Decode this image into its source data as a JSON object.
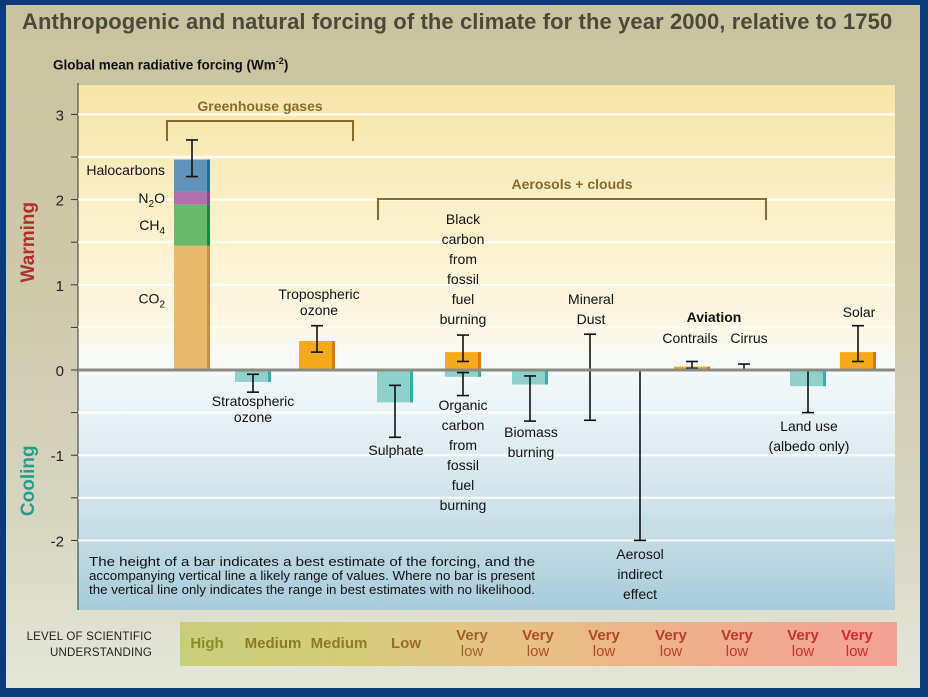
{
  "title": "Anthropogenic and natural forcing of the climate for the year 2000, relative to 1750",
  "level_label_line1": "LEVEL OF SCIENTIFIC",
  "level_label_line2": "UNDERSTANDING",
  "colors": {
    "frame": "#0d3a7a",
    "warming_label": "#b0302a",
    "cooling_label": "#2a9a8e",
    "bracket": "#8a6a2a",
    "co2": "#e8b96a",
    "ch4": "#6ab86a",
    "n2o": "#b070b0",
    "halocarbons": "#5f93ba",
    "positive_bar": "#f5aa1a",
    "negative_bar": "#8fd0cc"
  },
  "chart_data": {
    "type": "bar",
    "title": "Anthropogenic and natural forcing of the climate for the year 2000, relative to 1750",
    "ylabel": "Global mean radiative forcing (Wm-2)",
    "ylabel_sup": "-2",
    "ylim": [
      -2.85,
      3.35
    ],
    "yticks": [
      -2,
      -1,
      0,
      1,
      2,
      3
    ],
    "minor_gridlines": [
      -1.5,
      -0.5,
      0.5,
      1.5,
      2.5
    ],
    "side_labels": {
      "warming": "Warming",
      "cooling": "Cooling"
    },
    "groups": [
      {
        "label": "Greenhouse gases",
        "from": 0,
        "to": 2
      },
      {
        "label": "Aerosols + clouds",
        "from": 3,
        "to": 8
      }
    ],
    "aviation_heading": "Aviation",
    "note": [
      "The height of a bar indicates a best estimate of the forcing, and the",
      "accompanying vertical line a likely range of values.  Where no bar is present",
      "the vertical line only indicates the range in best estimates with no likelihood."
    ],
    "stacked_ghg": {
      "segments": [
        {
          "name": "CO2",
          "label": "CO",
          "sub": "2",
          "value": 1.46
        },
        {
          "name": "CH4",
          "label": "CH",
          "sub": "4",
          "value": 0.48
        },
        {
          "name": "N2O",
          "label": "N",
          "sub": "2",
          "label_after": "O",
          "value": 0.15
        },
        {
          "name": "Halocarbons",
          "label": "Halocarbons",
          "value": 0.38
        }
      ],
      "error": [
        2.27,
        2.7
      ]
    },
    "bars": [
      {
        "name": "Stratospheric ozone",
        "label": [
          "Stratospheric",
          "ozone"
        ],
        "value": -0.14,
        "error": [
          -0.26,
          -0.05
        ],
        "label_pos": "below"
      },
      {
        "name": "Tropospheric ozone",
        "label": [
          "Tropospheric",
          "ozone"
        ],
        "value": 0.34,
        "error": [
          0.21,
          0.52
        ],
        "label_pos": "above"
      },
      {
        "name": "Sulphate",
        "label": [
          "Sulphate"
        ],
        "value": -0.38,
        "error": [
          -0.79,
          -0.18
        ],
        "label_pos": "below-left"
      },
      {
        "name": "Black carbon from fossil fuel burning",
        "label": [
          "Black",
          "carbon",
          "from",
          "fossil",
          "fuel",
          "burning"
        ],
        "value": 0.21,
        "error": [
          0.1,
          0.41
        ],
        "label_pos": "above"
      },
      {
        "name": "Organic carbon from fossil fuel burning",
        "label": [
          "Organic",
          "carbon",
          "from",
          "fossil",
          "fuel",
          "burning"
        ],
        "value": -0.08,
        "error": [
          -0.3,
          -0.03
        ],
        "label_pos": "below"
      },
      {
        "name": "Biomass burning",
        "label": [
          "Biomass",
          "burning"
        ],
        "value": -0.17,
        "error": [
          -0.6,
          -0.07
        ],
        "label_pos": "below"
      },
      {
        "name": "Mineral Dust",
        "label": [
          "Mineral",
          "Dust"
        ],
        "value": null,
        "error": [
          -0.59,
          0.42
        ],
        "label_pos": "above"
      },
      {
        "name": "Aerosol indirect effect",
        "label": [
          "Aerosol",
          "indirect",
          "effect"
        ],
        "value": null,
        "error": [
          -2.0,
          0.0
        ],
        "label_pos": "below"
      },
      {
        "name": "Contrails",
        "label": [
          "Contrails"
        ],
        "value": 0.04,
        "error": [
          0.02,
          0.1
        ],
        "label_pos": "above"
      },
      {
        "name": "Cirrus",
        "label": [
          "Cirrus"
        ],
        "value": null,
        "error": [
          0.0,
          0.07
        ],
        "label_pos": "above"
      },
      {
        "name": "Land use (albedo only)",
        "label": [
          "Land use",
          "(albedo only)"
        ],
        "value": -0.19,
        "error": [
          -0.5,
          0.0
        ],
        "label_pos": "below"
      },
      {
        "name": "Solar",
        "label": [
          "Solar"
        ],
        "value": 0.21,
        "error": [
          0.1,
          0.52
        ],
        "label_pos": "above"
      }
    ],
    "level_of_understanding": [
      {
        "for": "Greenhouse gases",
        "line1": "High"
      },
      {
        "for": "Stratospheric ozone",
        "line1": "Medium"
      },
      {
        "for": "Tropospheric ozone",
        "line1": "Medium"
      },
      {
        "for": "Sulphate",
        "line1": "Low"
      },
      {
        "for": "Black carbon / Organic carbon",
        "line1": "Very",
        "line2": "low"
      },
      {
        "for": "Biomass burning",
        "line1": "Very",
        "line2": "low"
      },
      {
        "for": "Mineral Dust",
        "line1": "Very",
        "line2": "low"
      },
      {
        "for": "Aerosol indirect effect",
        "line1": "Very",
        "line2": "low"
      },
      {
        "for": "Contrails",
        "line1": "Very",
        "line2": "low"
      },
      {
        "for": "Land use",
        "line1": "Very",
        "line2": "low"
      },
      {
        "for": "Solar",
        "line1": "Very",
        "line2": "low"
      }
    ]
  }
}
